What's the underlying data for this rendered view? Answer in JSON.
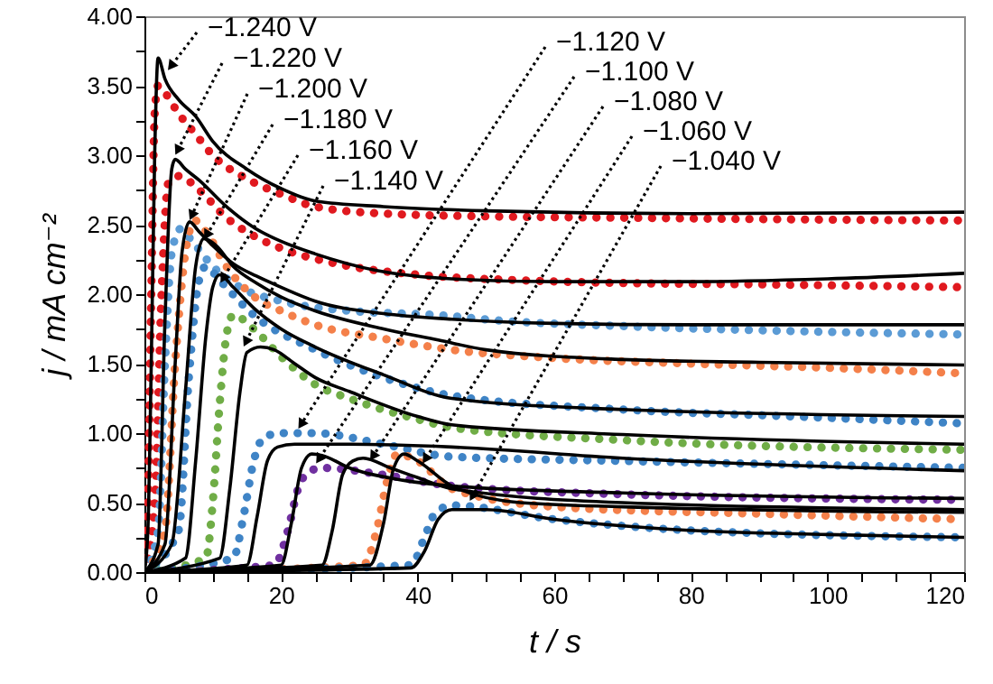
{
  "chart_data": {
    "type": "line",
    "xlabel": "t / s",
    "ylabel": "j / mA cm⁻²",
    "xlim": [
      0,
      120
    ],
    "ylim": [
      0,
      4
    ],
    "xticks": [
      0,
      {
        "value": 5,
        "label": null
      },
      {
        "value": 10,
        "label": null
      },
      {
        "value": 15,
        "label": null
      },
      20,
      {
        "value": 25,
        "label": null
      },
      {
        "value": 30,
        "label": null
      },
      {
        "value": 35,
        "label": null
      },
      40,
      {
        "value": 45,
        "label": null
      },
      {
        "value": 50,
        "label": null
      },
      {
        "value": 55,
        "label": null
      },
      60,
      {
        "value": 65,
        "label": null
      },
      {
        "value": 70,
        "label": null
      },
      {
        "value": 75,
        "label": null
      },
      80,
      {
        "value": 85,
        "label": null
      },
      {
        "value": 90,
        "label": null
      },
      {
        "value": 95,
        "label": null
      },
      100,
      {
        "value": 105,
        "label": null
      },
      {
        "value": 110,
        "label": null
      },
      {
        "value": 115,
        "label": null
      },
      120
    ],
    "yticks": [
      {
        "value": 0,
        "label": "0.00"
      },
      {
        "value": 0.25,
        "label": null
      },
      {
        "value": 0.5,
        "label": "0.50"
      },
      {
        "value": 0.75,
        "label": null
      },
      {
        "value": 1,
        "label": "1.00"
      },
      {
        "value": 1.25,
        "label": null
      },
      {
        "value": 1.5,
        "label": "1.50"
      },
      {
        "value": 1.75,
        "label": null
      },
      {
        "value": 2,
        "label": "2.00"
      },
      {
        "value": 2.25,
        "label": null
      },
      {
        "value": 2.5,
        "label": "2.50"
      },
      {
        "value": 2.75,
        "label": null
      },
      {
        "value": 3,
        "label": "3.00"
      },
      {
        "value": 3.25,
        "label": null
      },
      {
        "value": 3.5,
        "label": "3.50"
      },
      {
        "value": 3.75,
        "label": null
      },
      {
        "value": 4,
        "label": "4.00"
      }
    ],
    "series": [
      {
        "type": "line",
        "line_style": "dotted",
        "color": "#e0191f",
        "x": [
          0,
          0.5,
          1,
          1.5,
          2,
          3,
          5,
          7.5,
          10,
          15,
          20,
          25,
          35,
          50,
          70,
          90,
          120
        ],
        "values": [
          0,
          0.5,
          2.0,
          3.3,
          3.5,
          3.45,
          3.3,
          3.15,
          3.0,
          2.83,
          2.72,
          2.63,
          2.58,
          2.56,
          2.55,
          2.54,
          2.53
        ]
      },
      {
        "type": "line",
        "line_style": "dotted",
        "color": "#e0191f",
        "x": [
          0,
          1.5,
          2.5,
          3.5,
          5,
          8,
          12,
          16,
          20,
          28,
          40,
          55,
          70,
          90,
          120
        ],
        "values": [
          0,
          0.5,
          2.0,
          2.8,
          2.85,
          2.75,
          2.55,
          2.42,
          2.33,
          2.22,
          2.14,
          2.1,
          2.08,
          2.07,
          2.05
        ]
      },
      {
        "type": "line",
        "line_style": "dotted",
        "color": "#5b9bd5",
        "x": [
          0,
          2,
          3,
          4,
          5.3,
          7,
          10,
          14,
          20,
          30,
          43,
          52,
          70,
          90,
          120
        ],
        "values": [
          0,
          0.3,
          1.5,
          2.3,
          2.47,
          2.38,
          2.2,
          2.05,
          1.95,
          1.88,
          1.85,
          1.81,
          1.77,
          1.74,
          1.71
        ]
      },
      {
        "type": "line",
        "line_style": "dotted",
        "color": "#f4804a",
        "x": [
          0,
          3,
          4.5,
          6,
          7.4,
          9,
          12,
          16.4,
          20,
          25,
          35,
          45,
          60,
          80,
          100,
          120
        ],
        "values": [
          0,
          0.3,
          1.5,
          2.3,
          2.53,
          2.45,
          2.2,
          1.97,
          1.88,
          1.78,
          1.68,
          1.6,
          1.54,
          1.5,
          1.47,
          1.43
        ]
      },
      {
        "type": "line",
        "line_style": "dotted",
        "color": "#3f84c6",
        "x": [
          0,
          5,
          6.5,
          8,
          9,
          11,
          16,
          25,
          35,
          45,
          70,
          95,
          120
        ],
        "values": [
          0,
          0.3,
          1.4,
          2.1,
          2.2,
          2.1,
          1.85,
          1.6,
          1.4,
          1.27,
          1.17,
          1.12,
          1.07
        ]
      },
      {
        "type": "line",
        "line_style": "dotted",
        "color": "#70ad47",
        "x": [
          0,
          9,
          10,
          11,
          12,
          13,
          16,
          20,
          25,
          30,
          40,
          45,
          70,
          120
        ],
        "values": [
          0,
          0.1,
          0.5,
          1.2,
          1.7,
          1.85,
          1.75,
          1.55,
          1.35,
          1.25,
          1.1,
          1.04,
          0.95,
          0.88
        ]
      },
      {
        "type": "line",
        "line_style": "dotted",
        "color": "#3f84c6",
        "x": [
          0,
          13,
          14.5,
          16,
          17.5,
          20,
          25,
          35,
          45,
          70,
          120
        ],
        "values": [
          0,
          0.1,
          0.4,
          0.8,
          0.97,
          1.0,
          1.0,
          0.92,
          0.83,
          0.8,
          0.75
        ]
      },
      {
        "type": "line",
        "line_style": "dotted",
        "color": "#7030a0",
        "x": [
          0,
          19,
          21,
          22.5,
          24,
          26,
          35,
          45,
          70,
          120
        ],
        "values": [
          0,
          0.05,
          0.3,
          0.6,
          0.72,
          0.75,
          0.7,
          0.62,
          0.56,
          0.52
        ]
      },
      {
        "type": "line",
        "line_style": "dotted",
        "color": "#f4804a",
        "x": [
          0,
          32,
          34,
          35.5,
          37,
          40,
          45,
          60,
          90,
          120
        ],
        "values": [
          0,
          0.05,
          0.3,
          0.65,
          0.85,
          0.8,
          0.6,
          0.47,
          0.42,
          0.38
        ]
      },
      {
        "type": "line",
        "line_style": "dotted",
        "color": "#3f84c6",
        "x": [
          0,
          39,
          41,
          42.5,
          45,
          60,
          80,
          120
        ],
        "values": [
          0,
          0.05,
          0.25,
          0.42,
          0.48,
          0.38,
          0.3,
          0.25
        ]
      },
      {
        "type": "line",
        "line_style": "solid",
        "color": "#000000",
        "x": [
          0,
          0.5,
          1,
          1.5,
          2,
          3,
          5,
          7.5,
          10,
          15,
          20,
          25,
          35,
          50,
          80,
          120
        ],
        "values": [
          0,
          0.3,
          1.5,
          3.0,
          3.7,
          3.55,
          3.4,
          3.28,
          3.1,
          2.9,
          2.76,
          2.67,
          2.63,
          2.6,
          2.58,
          2.59
        ]
      },
      {
        "type": "line",
        "line_style": "solid",
        "color": "#000000",
        "x": [
          0,
          2,
          3,
          4,
          4.5,
          6,
          8,
          12,
          16,
          20,
          25,
          34,
          45,
          60,
          80,
          100,
          120
        ],
        "values": [
          0,
          0.2,
          1.8,
          2.9,
          2.97,
          2.9,
          2.82,
          2.63,
          2.48,
          2.38,
          2.29,
          2.17,
          2.11,
          2.09,
          2.09,
          2.11,
          2.15
        ]
      },
      {
        "type": "line",
        "line_style": "solid",
        "color": "#000000",
        "x": [
          0,
          3,
          4.5,
          5.5,
          6.6,
          8,
          10,
          13,
          16.4,
          20,
          25,
          35,
          45,
          60,
          80,
          120
        ],
        "values": [
          0,
          0.2,
          1.5,
          2.3,
          2.52,
          2.45,
          2.35,
          2.22,
          2.13,
          2.05,
          1.95,
          1.86,
          1.82,
          1.79,
          1.78,
          1.78
        ]
      },
      {
        "type": "line",
        "line_style": "solid",
        "color": "#000000",
        "x": [
          0,
          4,
          6,
          7.5,
          8.7,
          10.5,
          13,
          16.4,
          20,
          25,
          35,
          43,
          50,
          70,
          90,
          120
        ],
        "values": [
          0,
          0.2,
          1.3,
          2.2,
          2.4,
          2.35,
          2.2,
          2.08,
          1.98,
          1.88,
          1.75,
          1.67,
          1.6,
          1.53,
          1.51,
          1.49
        ]
      },
      {
        "type": "line",
        "line_style": "solid",
        "color": "#000000",
        "x": [
          0,
          6,
          7.5,
          9,
          10,
          11,
          13,
          16,
          20,
          25,
          35,
          45,
          70,
          120
        ],
        "values": [
          0,
          0.1,
          0.8,
          1.7,
          2.05,
          2.14,
          2.05,
          1.9,
          1.75,
          1.62,
          1.42,
          1.25,
          1.17,
          1.12
        ]
      },
      {
        "type": "line",
        "line_style": "solid",
        "color": "#000000",
        "x": [
          0,
          11,
          12.5,
          14,
          15,
          17,
          19,
          22,
          25,
          30,
          40,
          45,
          70,
          120
        ],
        "values": [
          0,
          0.1,
          0.6,
          1.3,
          1.58,
          1.62,
          1.6,
          1.5,
          1.4,
          1.3,
          1.12,
          1.06,
          0.99,
          0.92
        ]
      },
      {
        "type": "line",
        "line_style": "solid",
        "color": "#000000",
        "x": [
          0,
          15,
          16.5,
          18,
          19.5,
          22,
          30,
          45,
          70,
          120
        ],
        "values": [
          0,
          0.05,
          0.4,
          0.8,
          0.9,
          0.92,
          0.92,
          0.9,
          0.82,
          0.73
        ]
      },
      {
        "type": "line",
        "line_style": "solid",
        "color": "#000000",
        "x": [
          0,
          20,
          21.5,
          23,
          24.5,
          26,
          30,
          38,
          45,
          70,
          120
        ],
        "values": [
          0,
          0.05,
          0.35,
          0.75,
          0.85,
          0.84,
          0.75,
          0.66,
          0.62,
          0.57,
          0.53
        ]
      },
      {
        "type": "line",
        "line_style": "solid",
        "color": "#000000",
        "x": [
          0,
          26,
          27.5,
          29,
          30.5,
          32,
          36,
          40,
          45,
          70,
          120
        ],
        "values": [
          0,
          0.05,
          0.3,
          0.7,
          0.8,
          0.82,
          0.75,
          0.68,
          0.6,
          0.5,
          0.45
        ]
      },
      {
        "type": "line",
        "line_style": "solid",
        "color": "#000000",
        "x": [
          0,
          33,
          35,
          36.5,
          38,
          40,
          45,
          55,
          70,
          120
        ],
        "values": [
          0,
          0.05,
          0.35,
          0.75,
          0.85,
          0.8,
          0.62,
          0.5,
          0.47,
          0.43
        ]
      },
      {
        "type": "line",
        "line_style": "solid",
        "color": "#000000",
        "x": [
          0,
          39,
          41,
          43,
          45,
          50,
          60,
          80,
          100,
          120
        ],
        "values": [
          0,
          0.03,
          0.15,
          0.38,
          0.45,
          0.45,
          0.38,
          0.3,
          0.27,
          0.25
        ]
      }
    ],
    "annotations": [
      {
        "text": "−1.240 V",
        "x": 3.4,
        "y": 3.61
      },
      {
        "text": "−1.220 V",
        "x": 4.5,
        "y": 3.0
      },
      {
        "text": "−1.200 V",
        "x": 6.6,
        "y": 2.53
      },
      {
        "text": "−1.180 V",
        "x": 8.7,
        "y": 2.39
      },
      {
        "text": "−1.160 V",
        "x": 11.1,
        "y": 2.08
      },
      {
        "text": "−1.140 V",
        "x": 14.5,
        "y": 1.62
      },
      {
        "text": "−1.120 V",
        "x": 22.5,
        "y": 1.03
      },
      {
        "text": "−1.100 V",
        "x": 25.1,
        "y": 0.78
      },
      {
        "text": "−1.080 V",
        "x": 33,
        "y": 0.8
      },
      {
        "text": "−1.060 V",
        "x": 40.7,
        "y": 0.78
      },
      {
        "text": "−1.040 V",
        "x": 47.6,
        "y": 0.51
      }
    ]
  }
}
